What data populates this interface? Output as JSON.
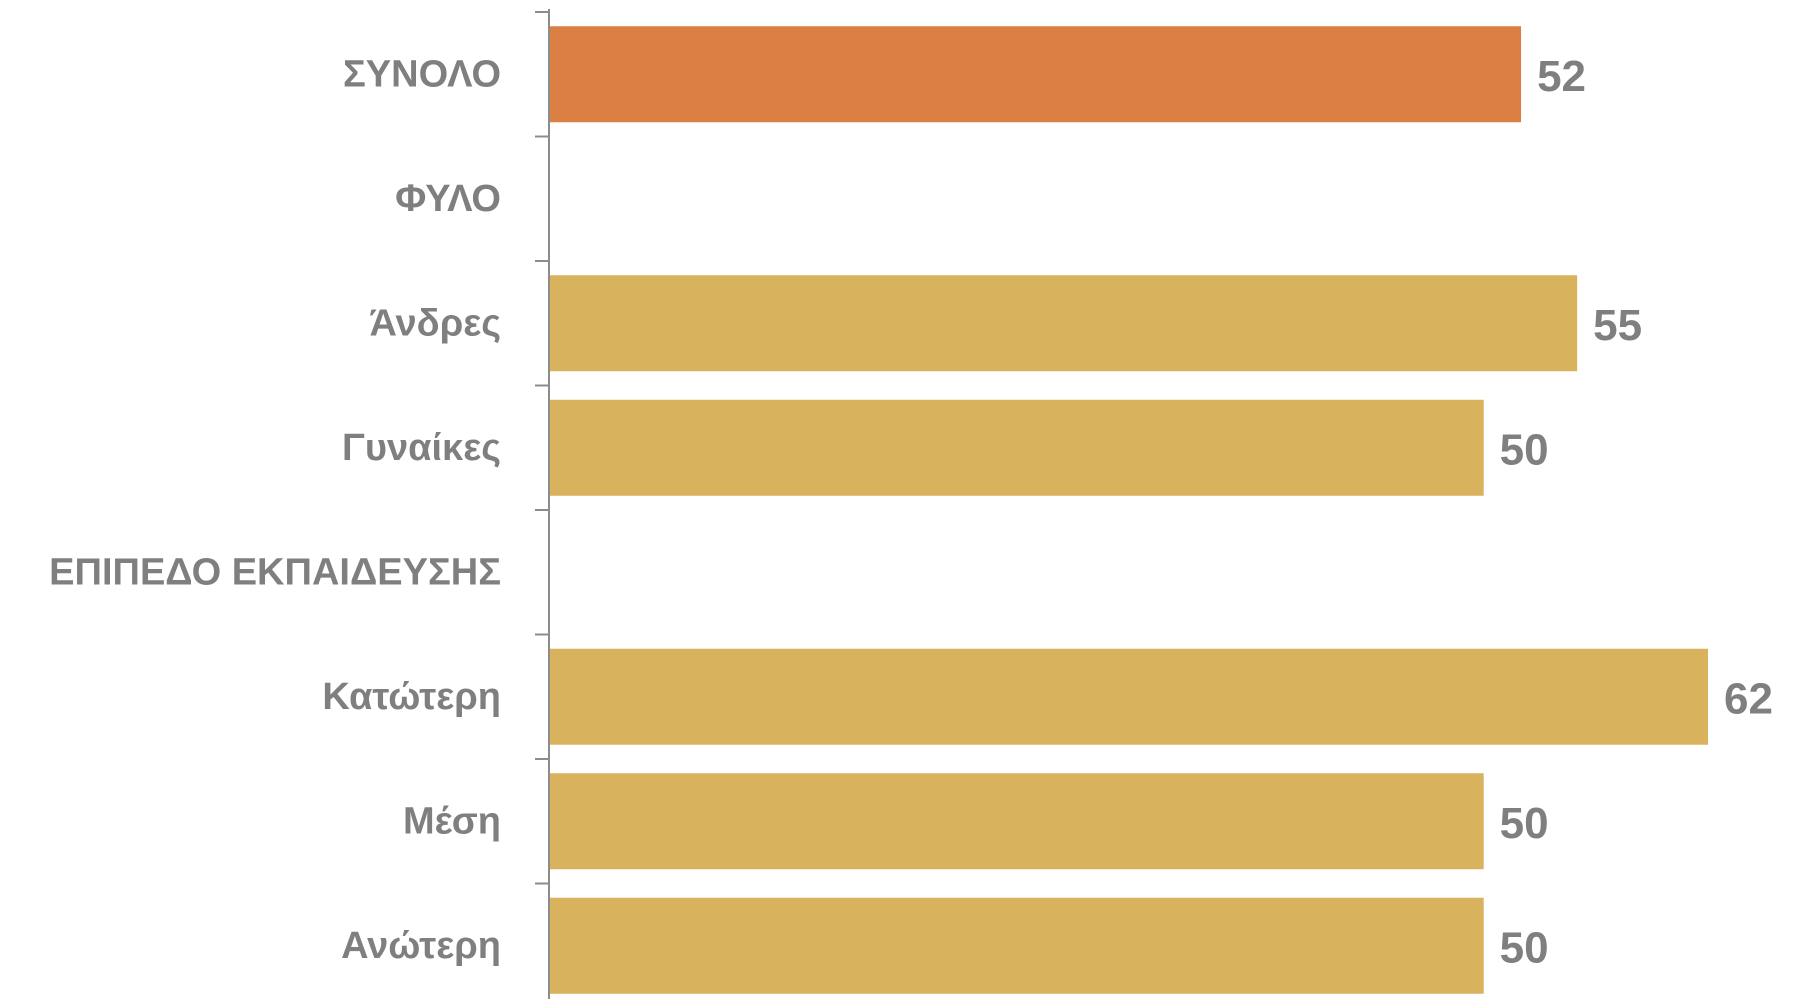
{
  "chart_data": {
    "type": "bar",
    "orientation": "horizontal",
    "categories": [
      "ΣΥΝΟΛΟ",
      "ΦΥΛΟ",
      "Άνδρες",
      "Γυναίκες",
      "ΕΠΙΠΕΔΟ ΕΚΠΑΙΔΕΥΣΗΣ",
      "Κατώτερη",
      "Μέση",
      "Ανώτερη"
    ],
    "values": [
      52,
      null,
      55,
      50,
      null,
      62,
      50,
      50
    ],
    "value_labels": [
      "52",
      "",
      "55",
      "50",
      "",
      "62",
      "50",
      "50"
    ],
    "bar_colors": [
      "#dc7f45",
      null,
      "#d8b25c",
      "#d8b25c",
      null,
      "#d8b25c",
      "#d8b25c",
      "#d8b25c"
    ],
    "xlim": [
      0,
      62
    ],
    "grid": false,
    "legend": "none",
    "title": "",
    "xlabel": "",
    "ylabel": ""
  }
}
